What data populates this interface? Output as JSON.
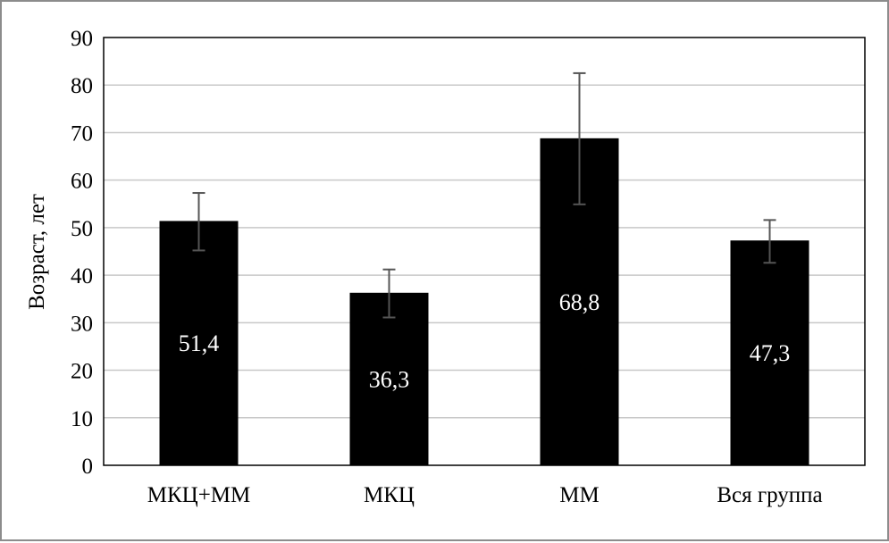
{
  "chart_data": {
    "type": "bar",
    "categories": [
      "МКЦ+ММ",
      "МКЦ",
      "ММ",
      "Вся группа"
    ],
    "values": [
      51.4,
      36.3,
      68.8,
      47.3
    ],
    "data_labels": [
      "51,4",
      "36,3",
      "68,8",
      "47,3"
    ],
    "error_high": [
      57.3,
      41.2,
      82.5,
      51.6
    ],
    "error_low": [
      45.2,
      31.1,
      54.9,
      42.6
    ],
    "title": "",
    "xlabel": "",
    "ylabel": "Возраст, лет",
    "ylim": [
      0,
      90
    ],
    "yticks": [
      0,
      10,
      20,
      30,
      40,
      50,
      60,
      70,
      80,
      90
    ],
    "grid": true,
    "legend": "none",
    "bar_color": "#000000",
    "grid_color": "#c8c8c8",
    "error_color": "#555555"
  }
}
